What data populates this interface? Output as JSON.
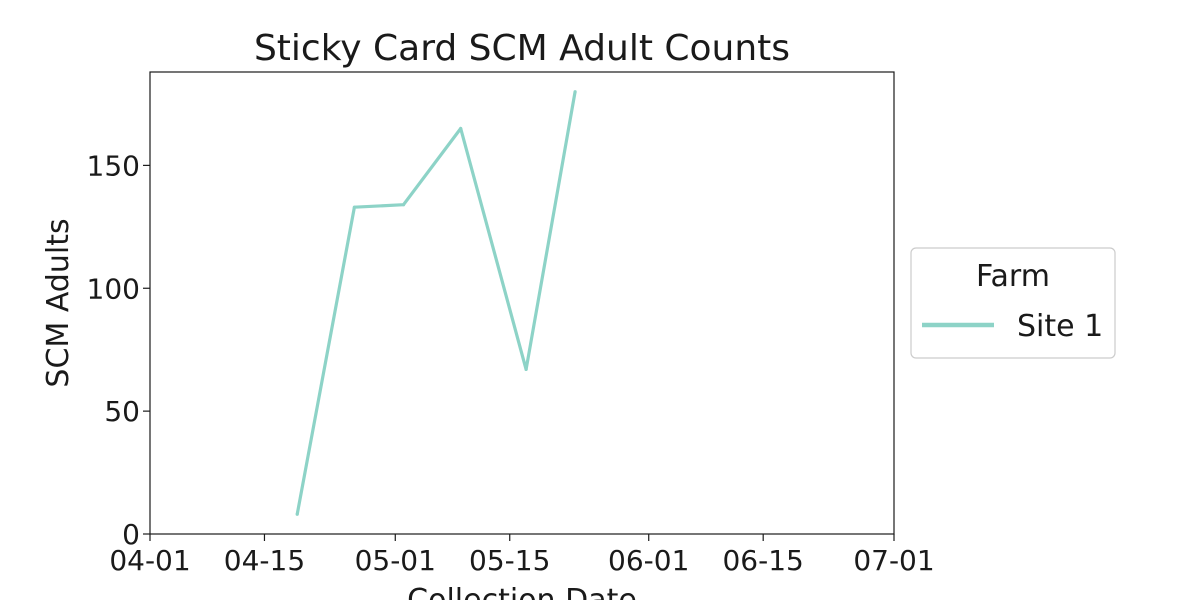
{
  "chart_data": {
    "type": "line",
    "title": "Sticky Card SCM Adult Counts",
    "xlabel": "Collection Date",
    "ylabel": "SCM Adults",
    "x_axis_type": "date",
    "xlim": [
      "2024-04-01",
      "2024-07-01"
    ],
    "ylim": [
      0,
      188
    ],
    "x_ticks": [
      {
        "date": "2024-04-01",
        "label": "04-01"
      },
      {
        "date": "2024-04-15",
        "label": "04-15"
      },
      {
        "date": "2024-05-01",
        "label": "05-01"
      },
      {
        "date": "2024-05-15",
        "label": "05-15"
      },
      {
        "date": "2024-06-01",
        "label": "06-01"
      },
      {
        "date": "2024-06-15",
        "label": "06-15"
      },
      {
        "date": "2024-07-01",
        "label": "07-01"
      }
    ],
    "y_ticks": [
      0,
      50,
      100,
      150
    ],
    "grid": false,
    "legend": {
      "title": "Farm",
      "position": "right"
    },
    "series": [
      {
        "name": "Site 1",
        "color": "#8dd3c7",
        "points": [
          {
            "x": "2024-04-19",
            "y": 8
          },
          {
            "x": "2024-04-26",
            "y": 133
          },
          {
            "x": "2024-05-02",
            "y": 134
          },
          {
            "x": "2024-05-09",
            "y": 165
          },
          {
            "x": "2024-05-17",
            "y": 67
          },
          {
            "x": "2024-05-23",
            "y": 180
          }
        ]
      }
    ]
  }
}
